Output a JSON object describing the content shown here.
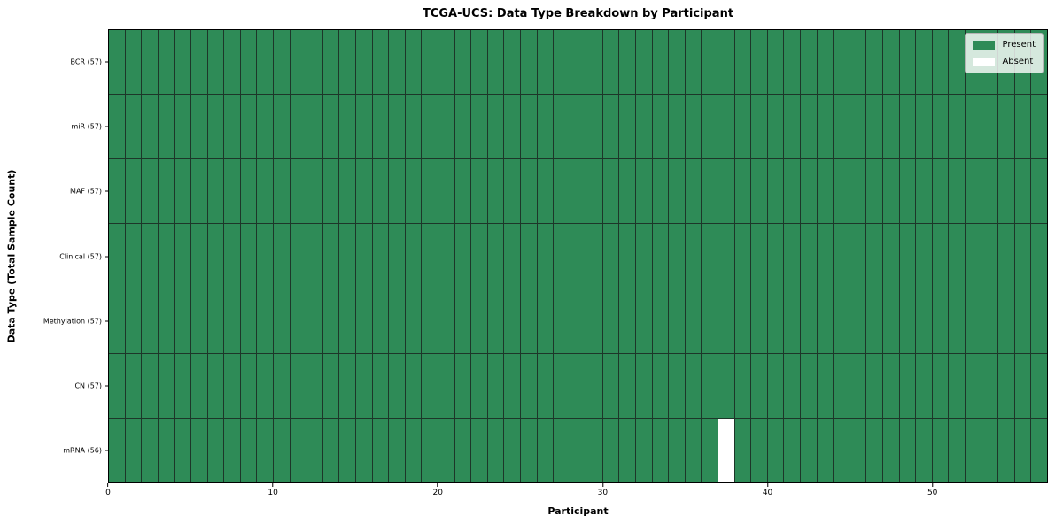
{
  "chart_data": {
    "type": "heatmap",
    "title": "TCGA-UCS: Data Type Breakdown by Participant",
    "xlabel": "Participant",
    "ylabel": "Data Type (Total Sample Count)",
    "x_range": [
      0,
      57
    ],
    "x_ticks": [
      0,
      10,
      20,
      30,
      40,
      50
    ],
    "n_participants": 57,
    "rows": [
      {
        "label": "BCR (57)",
        "count": 57,
        "absent_participants": []
      },
      {
        "label": "miR (57)",
        "count": 57,
        "absent_participants": []
      },
      {
        "label": "MAF (57)",
        "count": 57,
        "absent_participants": []
      },
      {
        "label": "Clinical (57)",
        "count": 57,
        "absent_participants": []
      },
      {
        "label": "Methylation (57)",
        "count": 57,
        "absent_participants": []
      },
      {
        "label": "CN (57)",
        "count": 57,
        "absent_participants": []
      },
      {
        "label": "mRNA (56)",
        "count": 56,
        "absent_participants": [
          37
        ]
      }
    ],
    "legend": {
      "position": "upper right",
      "entries": [
        {
          "label": "Present",
          "color": "#2e8b57"
        },
        {
          "label": "Absent",
          "color": "#ffffff"
        }
      ]
    },
    "colors": {
      "present": "#2e8b57",
      "absent": "#ffffff",
      "grid_line": "#1d3629",
      "frame": "#000000",
      "background": "#ffffff"
    }
  }
}
